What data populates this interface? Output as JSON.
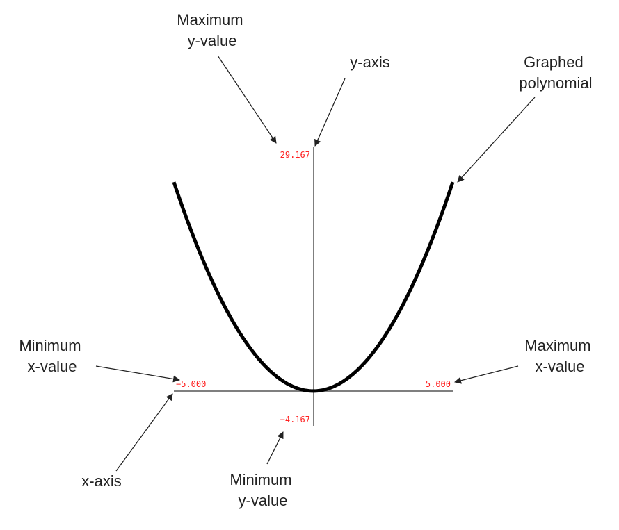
{
  "axis_labels": {
    "y_max": "29.167",
    "y_min": "−4.167",
    "x_min": "−5.000",
    "x_max": "5.000"
  },
  "callouts": {
    "max_y": [
      "Maximum",
      "y-value"
    ],
    "y_axis": [
      "y-axis"
    ],
    "graphed": [
      "Graphed",
      "polynomial"
    ],
    "min_x": [
      "Minimum",
      "x-value"
    ],
    "max_x": [
      "Maximum",
      "x-value"
    ],
    "x_axis": [
      "x-axis"
    ],
    "min_y": [
      "Minimum",
      "y-value"
    ]
  },
  "colors": {
    "axis_label": "#ff2020",
    "axis_line": "#555555",
    "curve": "#000000",
    "text": "#222222",
    "arrow": "#222222"
  },
  "chart_data": {
    "type": "line",
    "xlim": [
      -5.0,
      5.0
    ],
    "ylim": [
      -4.167,
      29.167
    ],
    "function": "y = x^2",
    "series": [
      {
        "x": [
          -5,
          -4,
          -3,
          -2,
          -1,
          0,
          1,
          2,
          3,
          4,
          5
        ],
        "y": [
          25,
          16,
          9,
          4,
          1,
          0,
          1,
          4,
          9,
          16,
          25
        ]
      }
    ]
  }
}
